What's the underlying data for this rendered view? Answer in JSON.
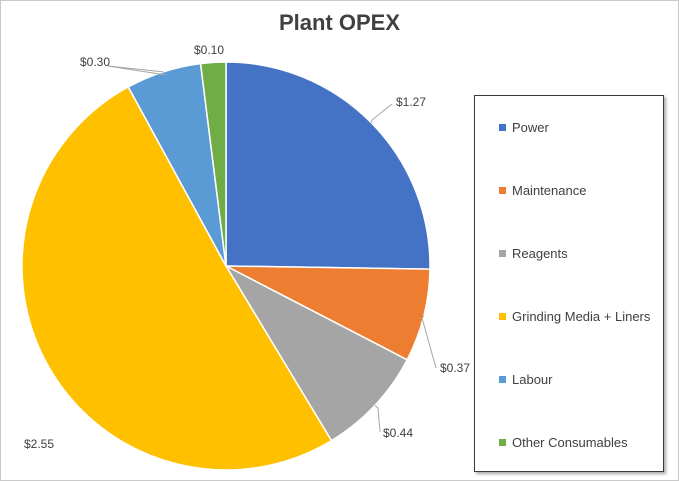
{
  "chart_data": {
    "type": "pie",
    "title": "Plant OPEX",
    "slices": [
      {
        "label": "Power",
        "value": 1.27,
        "value_label": "$1.27",
        "color": "#4472C4"
      },
      {
        "label": "Maintenance",
        "value": 0.37,
        "value_label": "$0.37",
        "color": "#ED7D31"
      },
      {
        "label": "Reagents",
        "value": 0.44,
        "value_label": "$0.44",
        "color": "#A5A5A5"
      },
      {
        "label": "Grinding Media + Liners",
        "value": 2.55,
        "value_label": "$2.55",
        "color": "#FFC000"
      },
      {
        "label": "Labour",
        "value": 0.3,
        "value_label": "$0.30",
        "color": "#5B9BD5"
      },
      {
        "label": "Other Consumables",
        "value": 0.1,
        "value_label": "$0.10",
        "color": "#70AD47"
      }
    ],
    "legend_position": "right",
    "start_angle": "12 o'clock, clockwise"
  }
}
